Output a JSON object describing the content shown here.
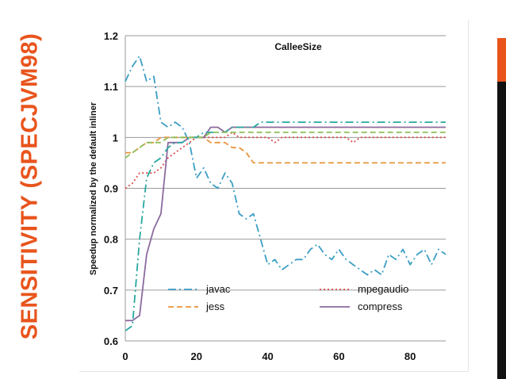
{
  "slide": {
    "side_title": "SENSITIVITY (SPECJVM98)",
    "accent_color": "#e8541c"
  },
  "chart_data": {
    "type": "line",
    "title": "CalleeSize",
    "xlabel": "",
    "ylabel": "Speedup normalized by the default inliner",
    "xlim": [
      0,
      90
    ],
    "ylim": [
      0.6,
      1.2
    ],
    "x_ticks": [
      "0",
      "20",
      "40",
      "60",
      "80"
    ],
    "y_ticks": [
      "0.6",
      "0.7",
      "0.8",
      "0.9",
      "1",
      "1.1",
      "1.2"
    ],
    "grid": "horizontal",
    "legend_position": "bottom",
    "series": [
      {
        "name": "javac",
        "color": "#3b9ec4",
        "style": "dash-dot",
        "x": [
          0,
          2,
          4,
          6,
          8,
          10,
          12,
          14,
          16,
          18,
          20,
          22,
          24,
          26,
          28,
          30,
          32,
          34,
          36,
          38,
          40,
          42,
          44,
          46,
          48,
          50,
          52,
          54,
          56,
          58,
          60,
          62,
          64,
          66,
          68,
          70,
          72,
          74,
          76,
          78,
          80,
          82,
          84,
          86,
          88,
          90
        ],
        "y": [
          1.11,
          1.14,
          1.16,
          1.11,
          1.12,
          1.03,
          1.02,
          1.03,
          1.02,
          0.99,
          0.92,
          0.94,
          0.91,
          0.9,
          0.93,
          0.91,
          0.85,
          0.84,
          0.85,
          0.8,
          0.75,
          0.76,
          0.74,
          0.75,
          0.76,
          0.76,
          0.78,
          0.79,
          0.77,
          0.76,
          0.78,
          0.76,
          0.75,
          0.74,
          0.73,
          0.74,
          0.73,
          0.77,
          0.76,
          0.78,
          0.75,
          0.77,
          0.78,
          0.75,
          0.78,
          0.77
        ]
      },
      {
        "name": "mpegaudio",
        "color": "#d94e4e",
        "style": "dotted",
        "x": [
          0,
          2,
          4,
          6,
          8,
          10,
          12,
          14,
          16,
          18,
          20,
          22,
          24,
          26,
          28,
          30,
          32,
          34,
          36,
          38,
          40,
          42,
          44,
          46,
          48,
          50,
          52,
          54,
          56,
          58,
          60,
          62,
          64,
          66,
          68,
          70,
          72,
          74,
          76,
          78,
          80,
          82,
          84,
          86,
          88,
          90
        ],
        "y": [
          0.9,
          0.91,
          0.93,
          0.93,
          0.93,
          0.94,
          0.96,
          0.97,
          0.98,
          0.99,
          1.0,
          1.0,
          1.0,
          1.0,
          1.0,
          1.01,
          1.0,
          1.0,
          1.0,
          1.0,
          1.0,
          0.99,
          1.0,
          1.0,
          1.0,
          1.0,
          1.0,
          1.0,
          1.0,
          1.0,
          1.0,
          1.0,
          0.99,
          1.0,
          1.0,
          1.0,
          1.0,
          1.0,
          1.0,
          1.0,
          1.0,
          1.0,
          1.0,
          1.0,
          1.0,
          1.0
        ]
      },
      {
        "name": "jess",
        "color": "#e8943a",
        "style": "dashed",
        "x": [
          0,
          2,
          4,
          6,
          8,
          10,
          12,
          14,
          16,
          18,
          20,
          22,
          24,
          26,
          28,
          30,
          32,
          34,
          36,
          38,
          40,
          42,
          44,
          46,
          48,
          50,
          52,
          54,
          56,
          58,
          60,
          62,
          64,
          66,
          68,
          70,
          72,
          74,
          76,
          78,
          80,
          82,
          84,
          86,
          88,
          90
        ],
        "y": [
          0.97,
          0.97,
          0.98,
          0.99,
          0.99,
          1.0,
          1.0,
          1.0,
          1.0,
          1.0,
          1.0,
          1.0,
          0.99,
          0.99,
          0.99,
          0.98,
          0.98,
          0.97,
          0.95,
          0.95,
          0.95,
          0.95,
          0.95,
          0.95,
          0.95,
          0.95,
          0.95,
          0.95,
          0.95,
          0.95,
          0.95,
          0.95,
          0.95,
          0.95,
          0.95,
          0.95,
          0.95,
          0.95,
          0.95,
          0.95,
          0.95,
          0.95,
          0.95,
          0.95,
          0.95,
          0.95
        ]
      },
      {
        "name": "compress",
        "color": "#8c6a9e",
        "style": "solid",
        "x": [
          0,
          2,
          4,
          6,
          8,
          10,
          12,
          14,
          16,
          18,
          20,
          22,
          24,
          26,
          28,
          30,
          32,
          34,
          36,
          38,
          40,
          42,
          44,
          46,
          48,
          50,
          52,
          54,
          56,
          58,
          60,
          62,
          64,
          66,
          68,
          70,
          72,
          74,
          76,
          78,
          80,
          82,
          84,
          86,
          88,
          90
        ],
        "y": [
          0.64,
          0.64,
          0.65,
          0.77,
          0.82,
          0.85,
          0.99,
          0.99,
          0.99,
          1.0,
          1.0,
          1.0,
          1.02,
          1.02,
          1.01,
          1.02,
          1.02,
          1.02,
          1.02,
          1.02,
          1.02,
          1.02,
          1.02,
          1.02,
          1.02,
          1.02,
          1.02,
          1.02,
          1.02,
          1.02,
          1.02,
          1.02,
          1.02,
          1.02,
          1.02,
          1.02,
          1.02,
          1.02,
          1.02,
          1.02,
          1.02,
          1.02,
          1.02,
          1.02,
          1.02,
          1.02
        ]
      },
      {
        "name": "",
        "color": "#28a7a0",
        "style": "dash-dot",
        "x": [
          0,
          2,
          4,
          6,
          8,
          10,
          12,
          14,
          16,
          18,
          20,
          22,
          24,
          26,
          28,
          30,
          32,
          34,
          36,
          38,
          40,
          42,
          44,
          46,
          48,
          50,
          52,
          54,
          56,
          58,
          60,
          62,
          64,
          66,
          68,
          70,
          72,
          74,
          76,
          78,
          80,
          82,
          84,
          86,
          88,
          90
        ],
        "y": [
          0.62,
          0.63,
          0.8,
          0.92,
          0.95,
          0.96,
          0.98,
          0.99,
          0.99,
          1.0,
          1.0,
          1.01,
          1.01,
          1.01,
          1.01,
          1.02,
          1.02,
          1.02,
          1.02,
          1.03,
          1.03,
          1.03,
          1.03,
          1.03,
          1.03,
          1.03,
          1.03,
          1.03,
          1.03,
          1.03,
          1.03,
          1.03,
          1.03,
          1.03,
          1.03,
          1.03,
          1.03,
          1.03,
          1.03,
          1.03,
          1.03,
          1.03,
          1.03,
          1.03,
          1.03,
          1.03
        ]
      },
      {
        "name": "",
        "color": "#8dbf5a",
        "style": "dashed",
        "x": [
          0,
          2,
          4,
          6,
          8,
          10,
          12,
          14,
          16,
          18,
          20,
          22,
          24,
          26,
          28,
          30,
          32,
          34,
          36,
          38,
          40,
          42,
          44,
          46,
          48,
          50,
          52,
          54,
          56,
          58,
          60,
          62,
          64,
          66,
          68,
          70,
          72,
          74,
          76,
          78,
          80,
          82,
          84,
          86,
          88,
          90
        ],
        "y": [
          0.96,
          0.97,
          0.98,
          0.99,
          0.99,
          0.99,
          1.0,
          1.0,
          1.0,
          1.0,
          1.0,
          1.0,
          1.01,
          1.01,
          1.01,
          1.01,
          1.01,
          1.01,
          1.01,
          1.01,
          1.01,
          1.01,
          1.01,
          1.01,
          1.01,
          1.01,
          1.01,
          1.01,
          1.01,
          1.01,
          1.01,
          1.01,
          1.01,
          1.01,
          1.01,
          1.01,
          1.01,
          1.01,
          1.01,
          1.01,
          1.01,
          1.01,
          1.01,
          1.01,
          1.01,
          1.01
        ]
      }
    ]
  }
}
